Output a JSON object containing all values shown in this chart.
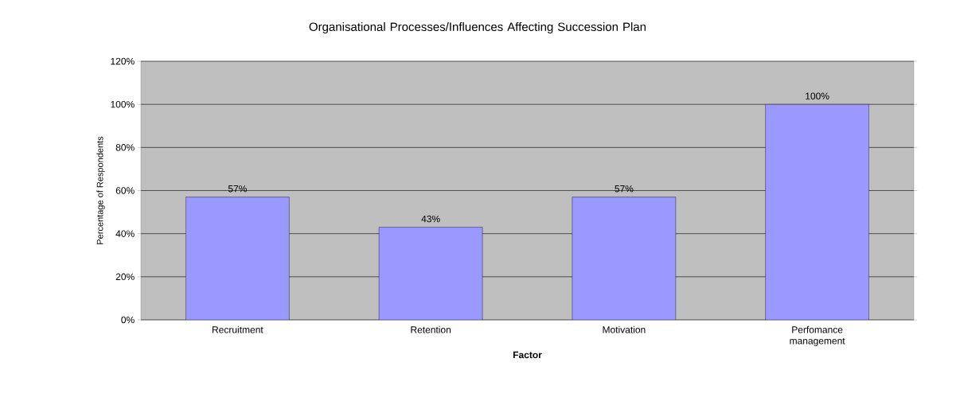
{
  "chart_data": {
    "type": "bar",
    "title": "Organisational Processes/Influences Affecting Succession Plan",
    "xlabel": "Factor",
    "ylabel": "Percentage of Respondents",
    "categories": [
      "Recruitment",
      "Retention",
      "Motivation",
      "Perfomance management"
    ],
    "values": [
      57,
      43,
      57,
      100
    ],
    "value_labels": [
      "57%",
      "43%",
      "57%",
      "100%"
    ],
    "color": "#9999ff",
    "ylim": [
      0,
      120
    ],
    "yticks": [
      {
        "value": 0,
        "label": "0%"
      },
      {
        "value": 20,
        "label": "20%"
      },
      {
        "value": 40,
        "label": "40%"
      },
      {
        "value": 60,
        "label": "60%"
      },
      {
        "value": 80,
        "label": "80%"
      },
      {
        "value": 100,
        "label": "100%"
      },
      {
        "value": 120,
        "label": "120%"
      }
    ],
    "grid": "y"
  }
}
